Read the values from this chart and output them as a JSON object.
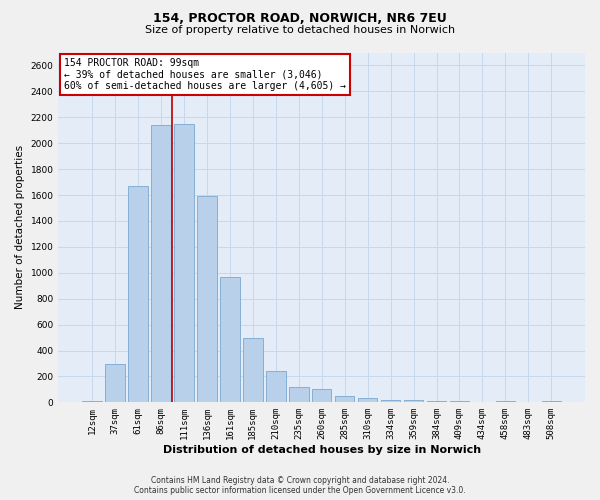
{
  "title_line1": "154, PROCTOR ROAD, NORWICH, NR6 7EU",
  "title_line2": "Size of property relative to detached houses in Norwich",
  "xlabel": "Distribution of detached houses by size in Norwich",
  "ylabel": "Number of detached properties",
  "categories": [
    "12sqm",
    "37sqm",
    "61sqm",
    "86sqm",
    "111sqm",
    "136sqm",
    "161sqm",
    "185sqm",
    "210sqm",
    "235sqm",
    "260sqm",
    "285sqm",
    "310sqm",
    "334sqm",
    "359sqm",
    "384sqm",
    "409sqm",
    "434sqm",
    "458sqm",
    "483sqm",
    "508sqm"
  ],
  "values": [
    10,
    295,
    1670,
    2140,
    2145,
    1595,
    965,
    500,
    240,
    120,
    100,
    50,
    30,
    20,
    15,
    10,
    8,
    5,
    10,
    5,
    10
  ],
  "bar_color": "#b8d0ea",
  "bar_edge_color": "#7aa8d2",
  "red_line_x": 3.5,
  "annotation_line1": "154 PROCTOR ROAD: 99sqm",
  "annotation_line2": "← 39% of detached houses are smaller (3,046)",
  "annotation_line3": "60% of semi-detached houses are larger (4,605) →",
  "annotation_box_facecolor": "#ffffff",
  "annotation_box_edgecolor": "#cc0000",
  "ylim_max": 2700,
  "yticks": [
    0,
    200,
    400,
    600,
    800,
    1000,
    1200,
    1400,
    1600,
    1800,
    2000,
    2200,
    2400,
    2600
  ],
  "grid_color": "#c8d8ec",
  "plot_bg_color": "#e4edf7",
  "fig_bg_color": "#f0f0f0",
  "footer_line1": "Contains HM Land Registry data © Crown copyright and database right 2024.",
  "footer_line2": "Contains public sector information licensed under the Open Government Licence v3.0.",
  "title1_fontsize": 9,
  "title2_fontsize": 8,
  "ylabel_fontsize": 7.5,
  "xlabel_fontsize": 8,
  "tick_fontsize": 6.5,
  "annotation_fontsize": 7,
  "footer_fontsize": 5.5
}
